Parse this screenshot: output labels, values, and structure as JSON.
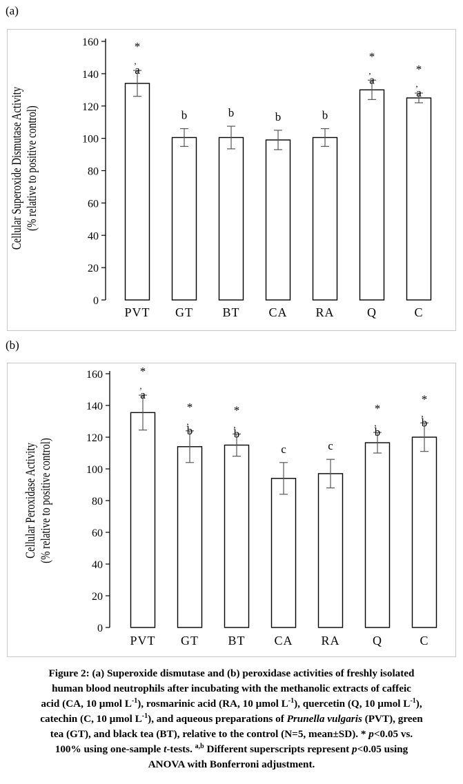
{
  "panels": {
    "a_label": "(a)",
    "b_label": "(b)"
  },
  "chart_data": [
    {
      "type": "bar",
      "panel": "(a)",
      "categories": [
        "PVT",
        "GT",
        "BT",
        "CA",
        "RA",
        "Q",
        "C"
      ],
      "values": [
        134,
        100.5,
        100.5,
        99,
        100.5,
        130,
        125
      ],
      "errors": [
        8,
        5.5,
        7,
        6,
        5.5,
        6,
        3
      ],
      "sig_letters": [
        "a",
        "b",
        "b",
        "b",
        "b",
        "a",
        "a"
      ],
      "sig_star": [
        true,
        false,
        false,
        false,
        false,
        true,
        true
      ],
      "ylabel_line1": "Cellular Superoxide Dismutase Activity",
      "ylabel_line2": "(% relative to positive control)",
      "yticks": [
        "0",
        "20",
        "40",
        "60",
        "80",
        "100",
        "120",
        "140",
        "160"
      ],
      "ylim": [
        0,
        160
      ],
      "bar_color": "#ffffff",
      "grid": false
    },
    {
      "type": "bar",
      "panel": "(b)",
      "categories": [
        "PVT",
        "GT",
        "BT",
        "CA",
        "RA",
        "Q",
        "C"
      ],
      "values": [
        135.5,
        114,
        115,
        94,
        97,
        116.5,
        120
      ],
      "errors": [
        11,
        10,
        7,
        10,
        9,
        6.5,
        9
      ],
      "sig_letters": [
        "a",
        "b",
        "b",
        "c",
        "c",
        "b",
        "b"
      ],
      "sig_star": [
        true,
        true,
        true,
        false,
        false,
        true,
        true
      ],
      "ylabel_line1": "Cellular Peroxidase Activity",
      "ylabel_line2": "(% relative to positive control)",
      "yticks": [
        "0",
        "20",
        "40",
        "60",
        "80",
        "100",
        "120",
        "140",
        "160"
      ],
      "ylim": [
        0,
        160
      ],
      "bar_color": "#ffffff",
      "grid": false
    }
  ]
}
